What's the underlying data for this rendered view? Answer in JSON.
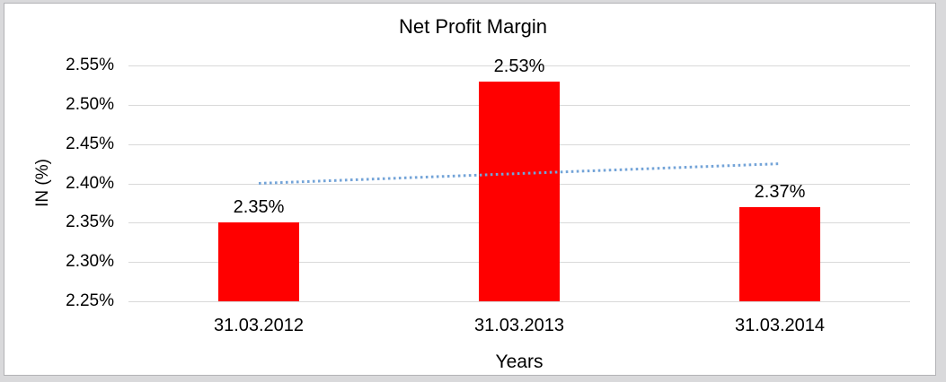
{
  "chart_data": {
    "type": "bar",
    "title": "Net Profit Margin",
    "xlabel": "Years",
    "ylabel": "IN (%)",
    "categories": [
      "31.03.2012",
      "31.03.2013",
      "31.03.2014"
    ],
    "values": [
      2.35,
      2.53,
      2.37
    ],
    "data_labels": [
      "2.35%",
      "2.53%",
      "2.37%"
    ],
    "ylim": [
      2.25,
      2.55
    ],
    "ytick_labels": [
      "2.55%",
      "2.50%",
      "2.45%",
      "2.40%",
      "2.35%",
      "2.30%",
      "2.25%"
    ],
    "grid": true,
    "legend": "none",
    "bar_color": "#ff0000",
    "gridline_color": "#d9d9d9",
    "trendline": {
      "type": "linear",
      "style": "dotted",
      "color": "#74a4d8",
      "start_value": 2.4,
      "end_value": 2.425
    }
  }
}
